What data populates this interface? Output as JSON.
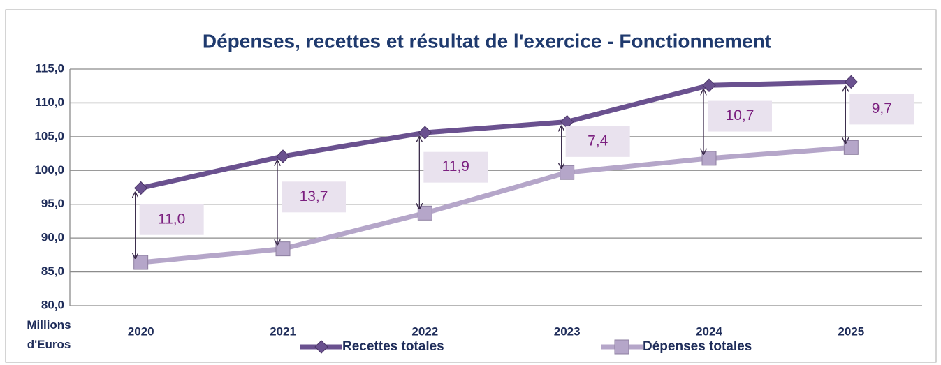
{
  "chart_data": {
    "type": "line",
    "title": "Dépenses, recettes et résultat de l'exercice - Fonctionnement",
    "y_label": "Millions d'Euros",
    "categories": [
      "2020",
      "2021",
      "2022",
      "2023",
      "2024",
      "2025"
    ],
    "series": [
      {
        "name": "Recettes totales",
        "color": "#6a518f",
        "values": [
          97.4,
          102.1,
          105.6,
          107.2,
          112.6,
          113.1
        ]
      },
      {
        "name": "Dépenses totales",
        "color": "#b5a6c9",
        "values": [
          86.4,
          88.4,
          93.7,
          99.7,
          101.8,
          103.4
        ]
      }
    ],
    "annotations": {
      "values": [
        11.0,
        13.7,
        11.9,
        7.4,
        10.7,
        9.7
      ],
      "value_labels": [
        "11,0",
        "13,7",
        "11,9",
        "7,4",
        "10,7",
        "9,7"
      ]
    },
    "ylim": [
      80,
      115
    ],
    "yticks": [
      {
        "value": 80,
        "label": "80,0"
      },
      {
        "value": 85,
        "label": "85,0"
      },
      {
        "value": 90,
        "label": "90,0"
      },
      {
        "value": 95,
        "label": "95,0"
      },
      {
        "value": 100,
        "label": "100,0"
      },
      {
        "value": 105,
        "label": "105,0"
      },
      {
        "value": 110,
        "label": "110,0"
      },
      {
        "value": 115,
        "label": "115,0"
      }
    ],
    "grid": true,
    "legend": "bottom"
  }
}
